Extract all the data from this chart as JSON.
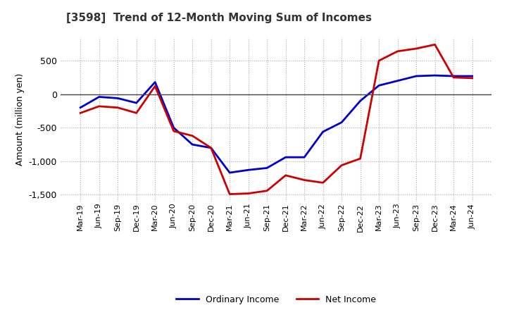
{
  "title": "[3598]  Trend of 12-Month Moving Sum of Incomes",
  "ylabel": "Amount (million yen)",
  "ylim": [
    -1600,
    850
  ],
  "yticks": [
    -1500,
    -1000,
    -500,
    0,
    500
  ],
  "background_color": "#ffffff",
  "ordinary_income_color": "#0000cc",
  "net_income_color": "#cc0000",
  "line_width": 2.0,
  "labels": [
    "Mar-19",
    "Jun-19",
    "Sep-19",
    "Dec-19",
    "Mar-20",
    "Jun-20",
    "Sep-20",
    "Dec-20",
    "Mar-21",
    "Jun-21",
    "Sep-21",
    "Dec-21",
    "Mar-22",
    "Jun-22",
    "Sep-22",
    "Dec-22",
    "Mar-23",
    "Jun-23",
    "Sep-23",
    "Dec-23",
    "Mar-24",
    "Jun-24"
  ],
  "ordinary_income": [
    -200,
    -40,
    -60,
    -130,
    180,
    -500,
    -750,
    -800,
    -1170,
    -1130,
    -1100,
    -940,
    -940,
    -560,
    -420,
    -100,
    130,
    200,
    270,
    280,
    270,
    270
  ],
  "net_income": [
    -280,
    -180,
    -200,
    -280,
    120,
    -550,
    -620,
    -800,
    -1490,
    -1480,
    -1440,
    -1210,
    -1280,
    -1320,
    -1060,
    -960,
    500,
    640,
    680,
    740,
    250,
    240
  ]
}
